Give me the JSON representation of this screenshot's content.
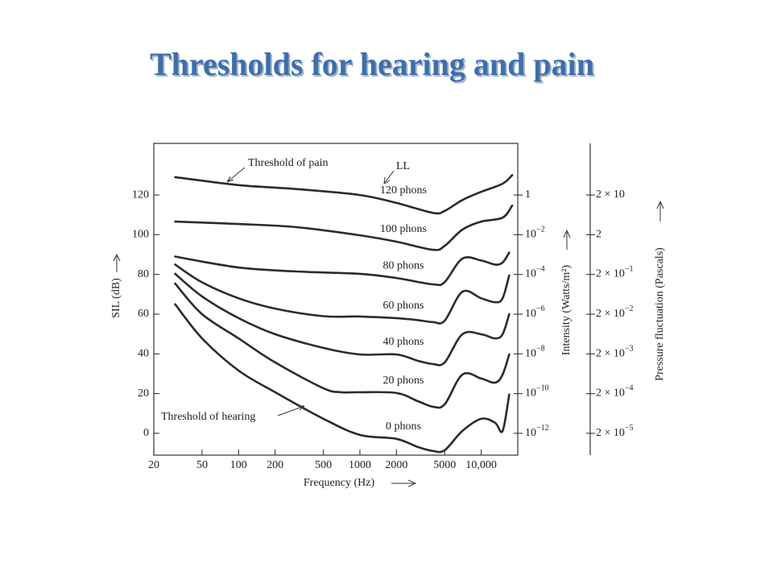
{
  "chart_data": {
    "type": "line",
    "title": "Thresholds for hearing and pain",
    "xlabel": "Frequency (Hz)",
    "ylabel": "SIL (dB)",
    "xscale": "log",
    "xlim": [
      20,
      20000
    ],
    "xticks": [
      20,
      50,
      100,
      200,
      500,
      1000,
      2000,
      5000,
      {
        "value": 10000,
        "label": "10,000"
      }
    ],
    "ylim": [
      -11,
      146
    ],
    "yticks": [
      0,
      20,
      40,
      60,
      80,
      100,
      120
    ],
    "y2label": "Intensity (Watts/m²)",
    "y2scale": "log",
    "y2lim": [
      7.94e-14,
      398
    ],
    "y2ticks": [
      {
        "value": 1,
        "label": "1"
      },
      {
        "value": 0.01,
        "label": "10",
        "sup": "−2"
      },
      {
        "value": 0.0001,
        "label": "10",
        "sup": "−4"
      },
      {
        "value": 1e-06,
        "label": "10",
        "sup": "−6"
      },
      {
        "value": 1e-08,
        "label": "10",
        "sup": "−8"
      },
      {
        "value": 1e-10,
        "label": "10",
        "sup": "−10"
      },
      {
        "value": 1e-12,
        "label": "10",
        "sup": "−12"
      }
    ],
    "y3label": "Pressure fluctuation (Pascals)",
    "y3scale": "log",
    "y3lim": [
      5.64e-06,
      399
    ],
    "y3ticks": [
      {
        "value": 20,
        "label": "2 × 10"
      },
      {
        "value": 2,
        "label": "2"
      },
      {
        "value": 0.2,
        "label": "2 × 10",
        "sup": "−1"
      },
      {
        "value": 0.02,
        "label": "2 × 10",
        "sup": "−2"
      },
      {
        "value": 0.002,
        "label": "2 × 10",
        "sup": "−3"
      },
      {
        "value": 0.0002,
        "label": "2 × 10",
        "sup": "−4"
      },
      {
        "value": 2e-05,
        "label": "2 × 10",
        "sup": "−5"
      }
    ],
    "annotations": [
      "Threshold of pain",
      "LL",
      "Threshold of hearing"
    ],
    "color": "#2b2b2b",
    "series": [
      {
        "name": "120 phons",
        "x": [
          30,
          100,
          300,
          1000,
          2000,
          4000,
          5000,
          7000,
          10000,
          15000,
          18000
        ],
        "values": [
          129,
          125,
          123,
          120,
          116,
          111,
          112,
          117.5,
          121.6,
          125.7,
          130
        ]
      },
      {
        "name": "100 phons",
        "x": [
          30,
          100,
          300,
          1000,
          2000,
          4000,
          5000,
          7000,
          10000,
          15000,
          18000
        ],
        "values": [
          106.6,
          105.4,
          103.8,
          99.7,
          96.5,
          92.4,
          94.4,
          102.6,
          106.6,
          108.6,
          114.7
        ]
      },
      {
        "name": "80 phons",
        "x": [
          30,
          100,
          300,
          1000,
          2000,
          4000,
          5000,
          7000,
          10000,
          13000,
          15000,
          17000
        ],
        "values": [
          89,
          83.5,
          81.5,
          80.3,
          78.2,
          75,
          76.2,
          88,
          87,
          85,
          86,
          91
        ]
      },
      {
        "name": "60 phons",
        "x": [
          30,
          50,
          100,
          200,
          500,
          1000,
          2000,
          3000,
          4000,
          5000,
          7000,
          10000,
          13000,
          15000,
          17000
        ],
        "values": [
          85,
          76,
          68,
          62.8,
          59,
          58.8,
          58,
          57,
          56,
          56.7,
          71.3,
          68,
          66,
          68,
          79.5
        ]
      },
      {
        "name": "40 phons",
        "x": [
          30,
          50,
          100,
          200,
          500,
          1000,
          2000,
          3000,
          4000,
          5000,
          7000,
          10000,
          13000,
          15000,
          17000
        ],
        "values": [
          80.3,
          68.9,
          58,
          49.9,
          43,
          39.7,
          39.7,
          36.5,
          34.9,
          35.7,
          49.9,
          49.9,
          47.8,
          49.9,
          60
        ]
      },
      {
        "name": "20 phons",
        "x": [
          30,
          50,
          100,
          200,
          500,
          700,
          1000,
          2000,
          3000,
          4000,
          5000,
          7000,
          10000,
          13000,
          15000,
          17000
        ],
        "values": [
          75.4,
          60,
          47.8,
          35.7,
          22.7,
          20.7,
          20.7,
          20.3,
          16.2,
          13.4,
          14.6,
          29.6,
          27.6,
          25.5,
          29.6,
          39.7
        ]
      },
      {
        "name": "0 phons",
        "x": [
          30,
          50,
          100,
          200,
          500,
          1000,
          2000,
          3000,
          4000,
          5000,
          7000,
          10000,
          13000,
          15000,
          17000
        ],
        "values": [
          65,
          47.8,
          31.6,
          20.7,
          7.3,
          -0.8,
          -2.8,
          -6.9,
          -8.9,
          -8.5,
          1.2,
          7.3,
          5.3,
          1.2,
          19.5
        ]
      }
    ]
  }
}
